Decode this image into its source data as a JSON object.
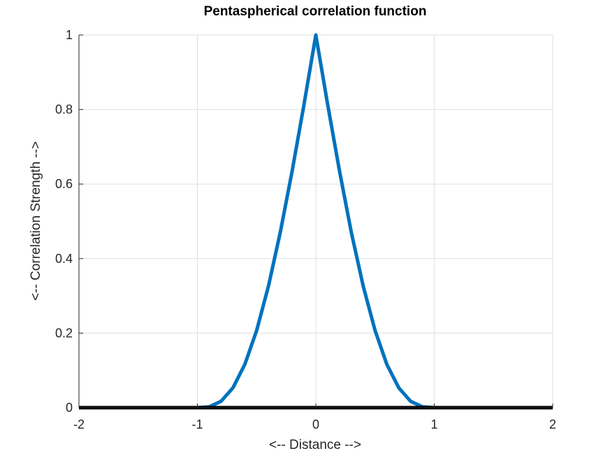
{
  "chart_data": {
    "type": "line",
    "title": "Pentaspherical correlation function",
    "xlabel": "<-- Distance -->",
    "ylabel": "<-- Correlation Strength -->",
    "xlim": [
      -2,
      2
    ],
    "ylim": [
      0,
      1
    ],
    "xticks": [
      -2,
      -1,
      0,
      1,
      2
    ],
    "xtick_labels": [
      "-2",
      "-1",
      "0",
      "1",
      "2"
    ],
    "yticks": [
      0,
      0.2,
      0.4,
      0.6,
      0.8,
      1
    ],
    "ytick_labels": [
      "0",
      "0.2",
      "0.4",
      "0.6",
      "0.8",
      "1"
    ],
    "grid": true,
    "series": [
      {
        "name": "pentaspherical",
        "color": "#0072BD",
        "x": [
          -2,
          -1.9,
          -1.8,
          -1.7,
          -1.6,
          -1.5,
          -1.4,
          -1.3,
          -1.2,
          -1.1,
          -1,
          -0.9,
          -0.8,
          -0.7,
          -0.6,
          -0.5,
          -0.4,
          -0.3,
          -0.2,
          -0.1,
          0,
          0.1,
          0.2,
          0.3,
          0.4,
          0.5,
          0.6,
          0.7,
          0.8,
          0.9,
          1,
          1.1,
          1.2,
          1.3,
          1.4,
          1.5,
          1.6,
          1.7,
          1.8,
          1.9,
          2
        ],
        "y": [
          0,
          0,
          0,
          0,
          0,
          0,
          0,
          0,
          0,
          0,
          0,
          0.00232,
          0.01712,
          0.05322,
          0.11584,
          0.20703,
          0.32616,
          0.47034,
          0.63488,
          0.81375,
          1,
          0.81375,
          0.63488,
          0.47034,
          0.32616,
          0.20703,
          0.11584,
          0.05322,
          0.01712,
          0.00232,
          0,
          0,
          0,
          0,
          0,
          0,
          0,
          0,
          0,
          0,
          0
        ]
      },
      {
        "name": "zero-line",
        "color": "#000000",
        "x": [
          -2,
          2
        ],
        "y": [
          0,
          0
        ]
      }
    ]
  }
}
